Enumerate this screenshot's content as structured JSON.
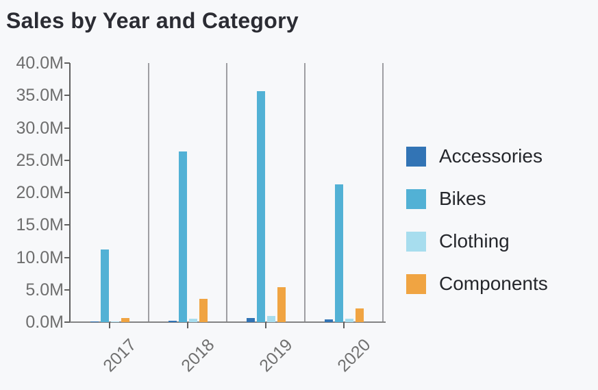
{
  "chart_data": {
    "type": "bar",
    "title": "Sales by Year and Category",
    "categories": [
      "2017",
      "2018",
      "2019",
      "2020"
    ],
    "series": [
      {
        "name": "Accessories",
        "color": "#3274b5",
        "values": [
          0.03,
          0.26,
          0.6,
          0.45
        ]
      },
      {
        "name": "Bikes",
        "color": "#52b1d5",
        "values": [
          11.2,
          26.3,
          35.7,
          21.3
        ]
      },
      {
        "name": "Clothing",
        "color": "#a7ddee",
        "values": [
          0.03,
          0.49,
          1.0,
          0.5
        ]
      },
      {
        "name": "Components",
        "color": "#f0a442",
        "values": [
          0.61,
          3.6,
          5.4,
          2.1
        ]
      }
    ],
    "values_unit": "millions",
    "xlabel": "",
    "ylabel": "",
    "ylim": [
      0,
      40
    ],
    "y_ticks": [
      "0.0M",
      "5.0M",
      "10.0M",
      "15.0M",
      "20.0M",
      "25.0M",
      "30.0M",
      "35.0M",
      "40.0M"
    ],
    "grid": "vertical-panel-separators",
    "legend_position": "right",
    "x_tick_rotation": -45
  },
  "colors": {
    "background": "#f7f8fa",
    "axis_line": "#5f5f5f",
    "separator_line": "#9e9ea2",
    "baseline": "#838383",
    "axis_text": "#6e6e6e",
    "title_text": "#2b2c33",
    "legend_text": "#25272c"
  }
}
